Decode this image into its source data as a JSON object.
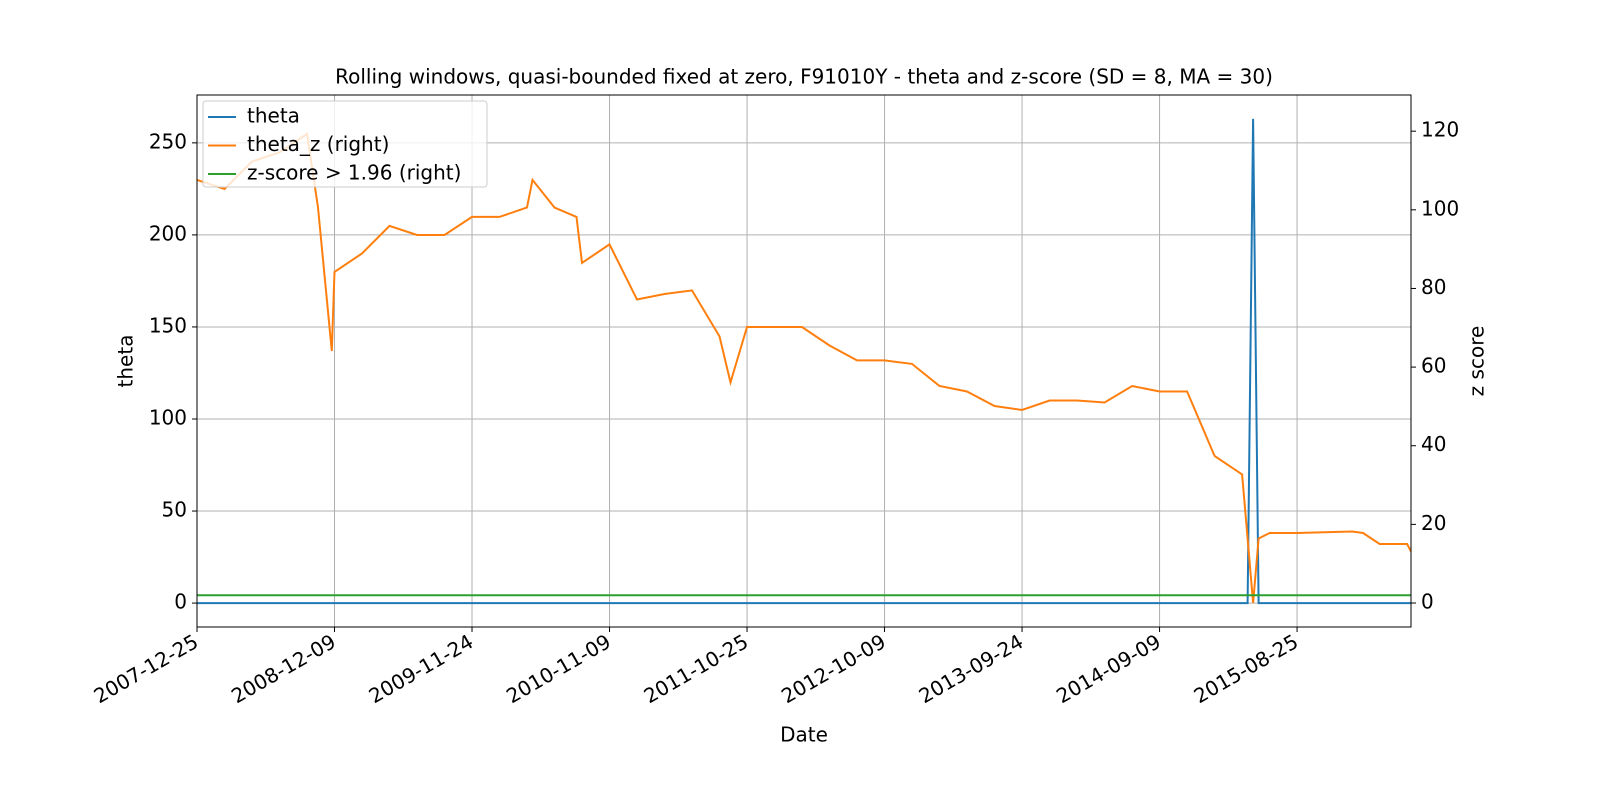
{
  "chart_data": {
    "type": "line",
    "title": "Rolling windows, quasi-bounded fixed at zero, F91010Y - theta and z-score (SD = 8, MA = 30)",
    "x_label": "Date",
    "y_label": "theta",
    "y2_label": "z score",
    "x": [
      "2007-12-25",
      "2008-03-04",
      "2008-05-13",
      "2008-07-22",
      "2008-09-30",
      "2008-10-28",
      "2008-12-02",
      "2008-12-09",
      "2009-02-17",
      "2009-04-28",
      "2009-07-07",
      "2009-09-15",
      "2009-11-24",
      "2010-02-02",
      "2010-04-13",
      "2010-04-27",
      "2010-06-22",
      "2010-08-17",
      "2010-08-31",
      "2010-11-09",
      "2011-01-18",
      "2011-03-29",
      "2011-06-07",
      "2011-08-16",
      "2011-09-13",
      "2011-10-25",
      "2012-01-03",
      "2012-03-13",
      "2012-05-22",
      "2012-07-31",
      "2012-10-09",
      "2012-12-18",
      "2013-02-26",
      "2013-05-07",
      "2013-07-16",
      "2013-09-24",
      "2013-12-03",
      "2014-02-11",
      "2014-04-22",
      "2014-07-01",
      "2014-09-09",
      "2014-11-18",
      "2015-01-27",
      "2015-04-07",
      "2015-04-21",
      "2015-05-05",
      "2015-05-19",
      "2015-06-16",
      "2015-08-25",
      "2015-11-03",
      "2016-01-12",
      "2016-02-09",
      "2016-03-22",
      "2016-05-31",
      "2016-06-10"
    ],
    "series": [
      {
        "name": "theta",
        "color": "#1f77b4",
        "axis": "y",
        "values": [
          0,
          0,
          0,
          0,
          0,
          0,
          0,
          0,
          0,
          0,
          0,
          0,
          0,
          0,
          0,
          0,
          0,
          0,
          0,
          0,
          0,
          0,
          0,
          0,
          0,
          0,
          0,
          0,
          0,
          0,
          0,
          0,
          0,
          0,
          0,
          0,
          0,
          0,
          0,
          0,
          0,
          0,
          0,
          0,
          0,
          263,
          0,
          0,
          0,
          0,
          0,
          0,
          0,
          0,
          0
        ]
      },
      {
        "name": "theta_z (right)",
        "color": "#ff7f0e",
        "axis": "y2",
        "values": [
          107.6,
          105.3,
          112.3,
          114.6,
          119.3,
          100.6,
          64.1,
          84.2,
          88.9,
          95.9,
          93.6,
          93.6,
          98.2,
          98.2,
          100.6,
          107.6,
          100.6,
          98.2,
          86.5,
          91.2,
          77.2,
          78.6,
          79.5,
          67.8,
          56.1,
          70.2,
          70.2,
          70.2,
          65.5,
          61.7,
          61.7,
          60.8,
          55.2,
          53.8,
          50.1,
          49.1,
          51.5,
          51.5,
          51.0,
          55.2,
          53.8,
          53.8,
          37.4,
          32.7,
          16.4,
          0,
          16.4,
          17.8,
          17.8,
          18.0,
          18.2,
          17.8,
          15.0,
          15.0,
          13.1
        ]
      },
      {
        "name": "z-score > 1.96 (right)",
        "color": "#2ca02c",
        "axis": "y2",
        "values": [
          1.96,
          1.96,
          1.96,
          1.96,
          1.96,
          1.96,
          1.96,
          1.96,
          1.96,
          1.96,
          1.96,
          1.96,
          1.96,
          1.96,
          1.96,
          1.96,
          1.96,
          1.96,
          1.96,
          1.96,
          1.96,
          1.96,
          1.96,
          1.96,
          1.96,
          1.96,
          1.96,
          1.96,
          1.96,
          1.96,
          1.96,
          1.96,
          1.96,
          1.96,
          1.96,
          1.96,
          1.96,
          1.96,
          1.96,
          1.96,
          1.96,
          1.96,
          1.96,
          1.96,
          1.96,
          1.96,
          1.96,
          1.96,
          1.96,
          1.96,
          1.96,
          1.96,
          1.96,
          1.96,
          1.96
        ]
      }
    ],
    "xlim": [
      "2007-12-25",
      "2016-06-10"
    ],
    "xticks": [
      "2007-12-25",
      "2008-12-09",
      "2009-11-24",
      "2010-11-09",
      "2011-10-25",
      "2012-10-09",
      "2013-09-24",
      "2014-09-09",
      "2015-08-25"
    ],
    "ylim": [
      -13,
      276
    ],
    "yticks": [
      0,
      50,
      100,
      150,
      200,
      250
    ],
    "y2lim": [
      -6.1,
      129.2
    ],
    "y2ticks": [
      0,
      20,
      40,
      60,
      80,
      100,
      120
    ],
    "grid": true,
    "legend": "upper-left"
  }
}
